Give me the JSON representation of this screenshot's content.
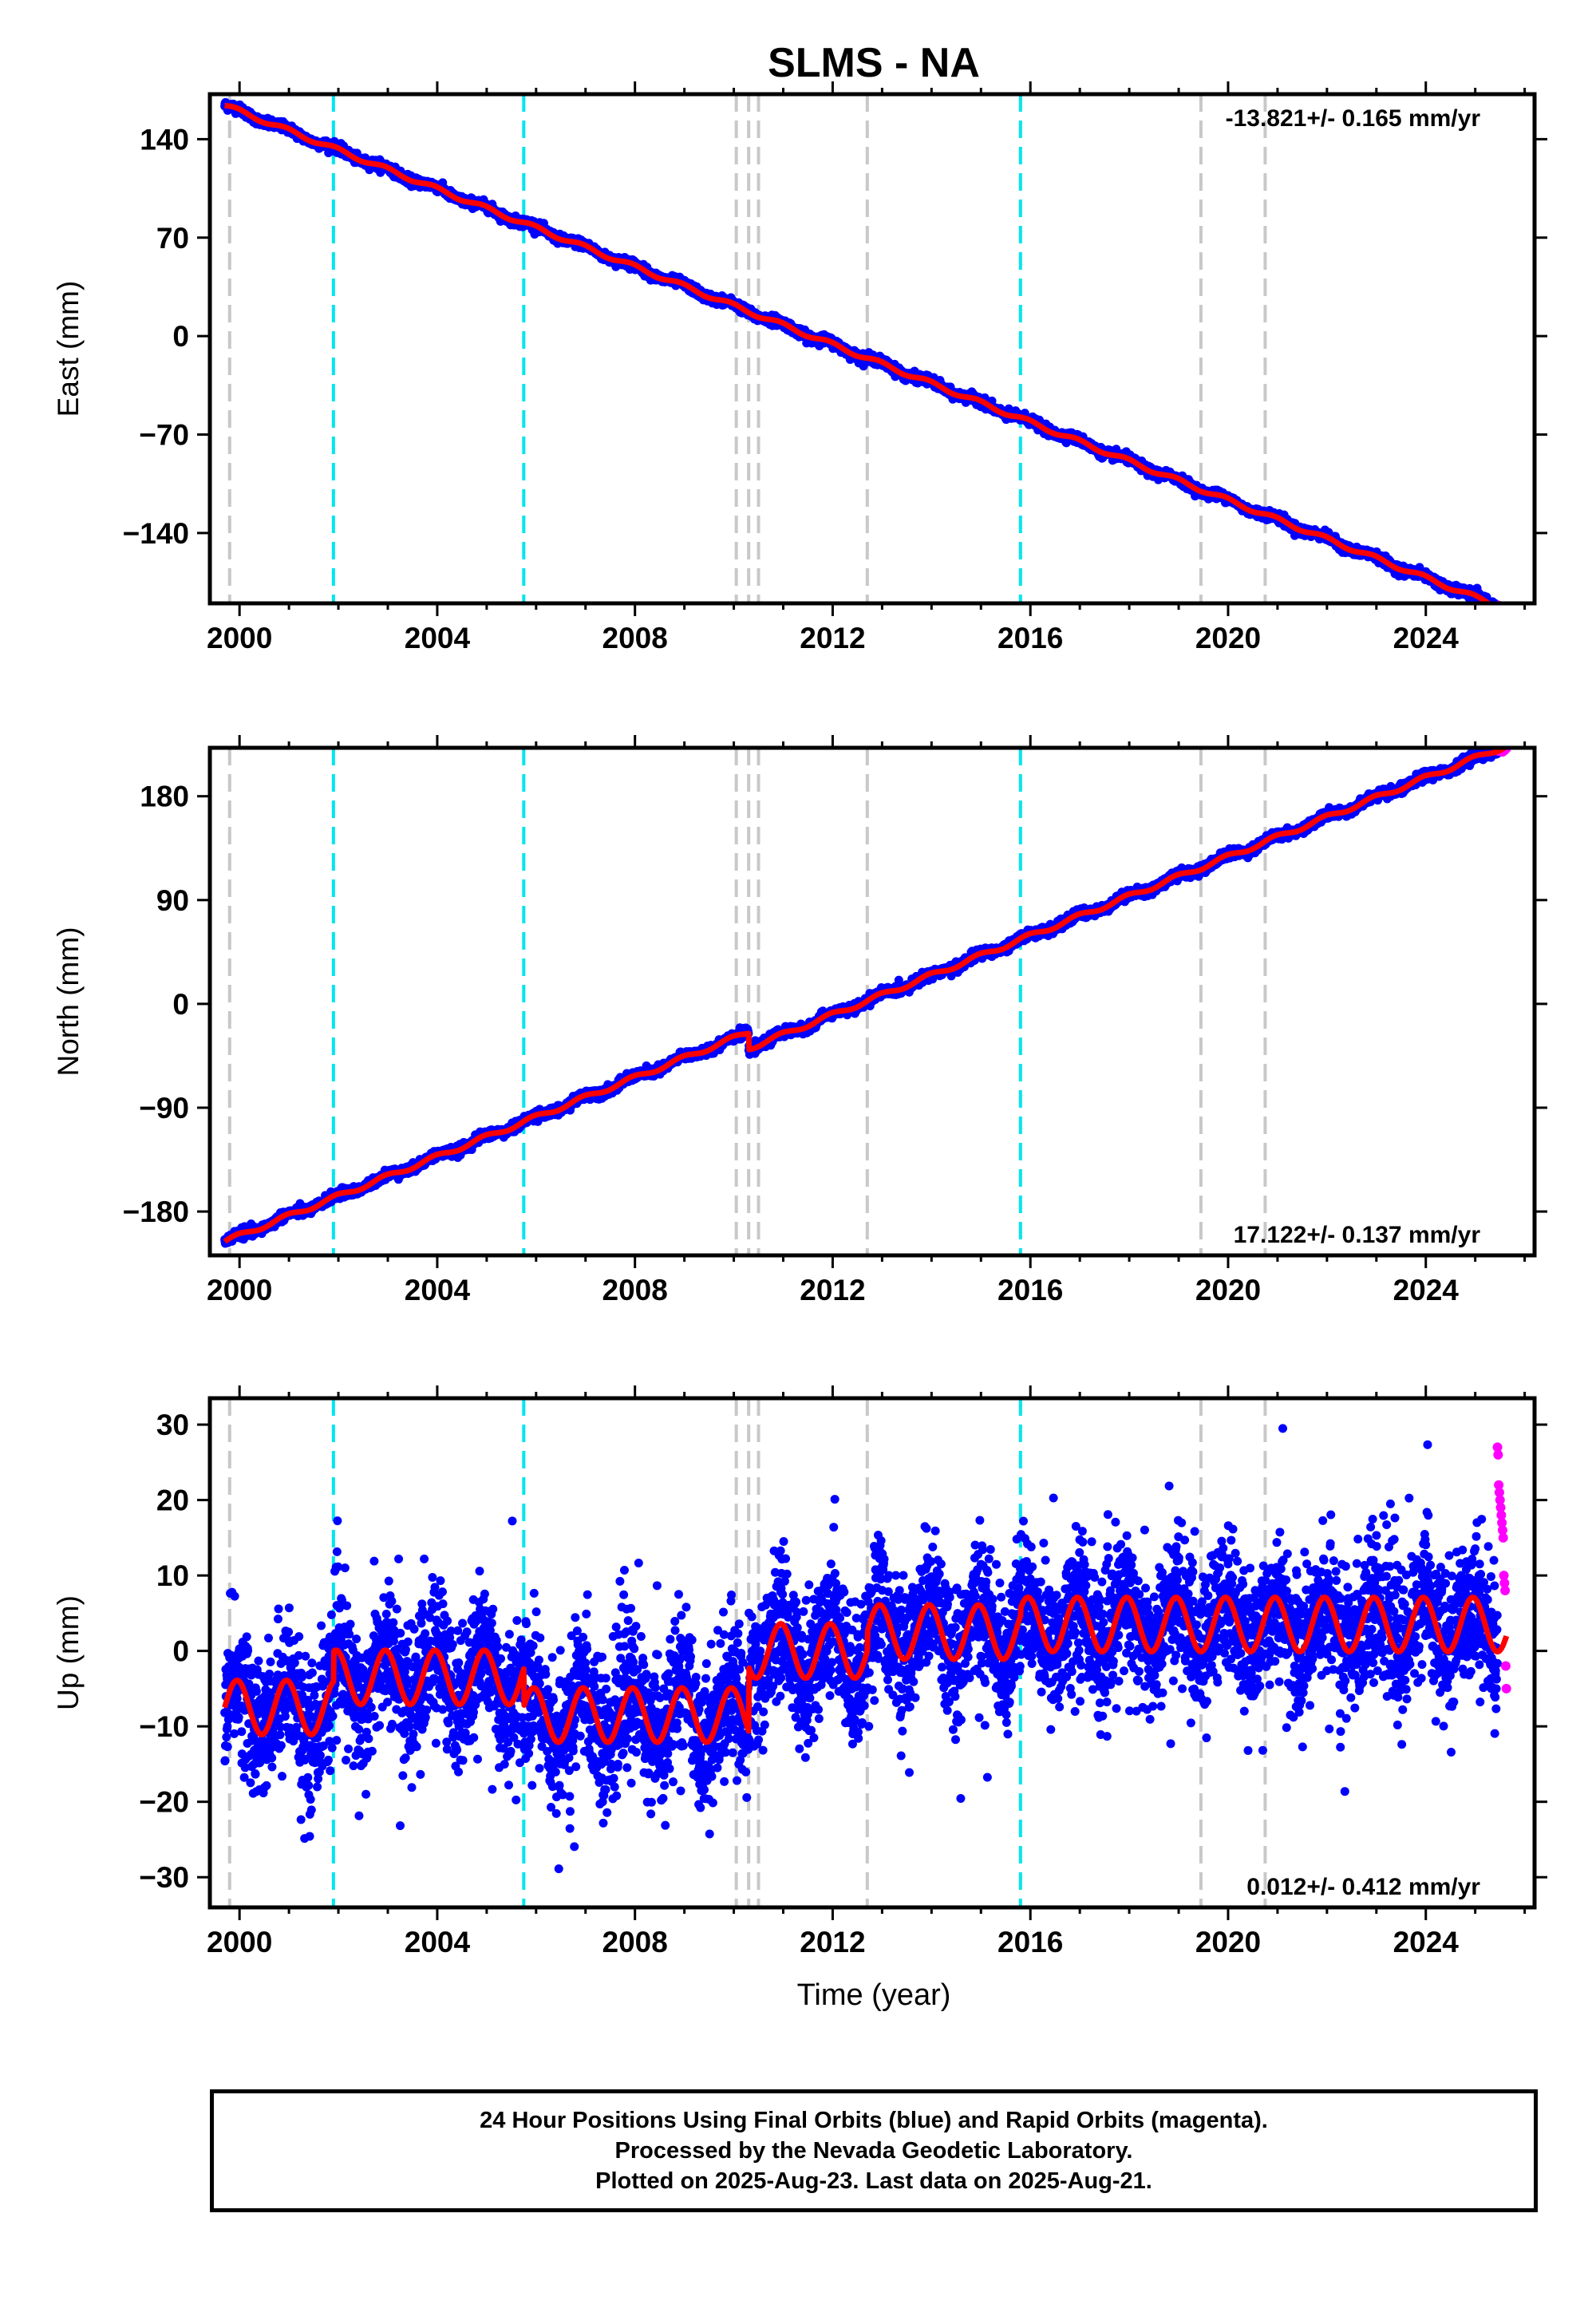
{
  "title": "SLMS - NA",
  "xlabel": "Time (year)",
  "footer": {
    "line1": "24 Hour Positions Using Final Orbits (blue) and Rapid Orbits (magenta).",
    "line2": "Processed by the Nevada Geodetic Laboratory.",
    "line3": "Plotted on 2025-Aug-23. Last data on 2025-Aug-21."
  },
  "colors": {
    "final_orbits": "#0000ff",
    "rapid_orbits": "#ff00ff",
    "model_fit": "#ff0000",
    "antenna_change_lines": "#00e5ee",
    "other_event_lines": "#c8c8c8"
  },
  "chart_data": [
    {
      "type": "scatter",
      "panel": "east",
      "ylabel": "East (mm)",
      "rate_label": "-13.821+/- 0.165 mm/yr",
      "xlim": [
        1999.4,
        2026.2
      ],
      "ylim": [
        -190,
        172
      ],
      "xticks": [
        2000,
        2004,
        2008,
        2012,
        2016,
        2020,
        2024
      ],
      "yticks": [
        140,
        70,
        0,
        -70,
        -140
      ],
      "grid": false,
      "start": 1999.7,
      "end": 2025.63,
      "start_value": 164,
      "rate": -13.821,
      "offsets": [],
      "annual_amplitude": 1.5,
      "scatter_sigma": 1.6
    },
    {
      "type": "scatter",
      "panel": "north",
      "ylabel": "North (mm)",
      "rate_label": "17.122+/- 0.137 mm/yr",
      "xlim": [
        1999.4,
        2026.2
      ],
      "ylim": [
        -218,
        222
      ],
      "xticks": [
        2000,
        2004,
        2008,
        2012,
        2016,
        2020,
        2024
      ],
      "yticks": [
        180,
        90,
        0,
        -90,
        -180
      ],
      "grid": false,
      "start": 1999.7,
      "end": 2025.63,
      "start_value": -206,
      "rate": 17.122,
      "offsets": [
        {
          "year": 2010.3,
          "value": -14
        }
      ],
      "annual_amplitude": 2,
      "scatter_sigma": 2
    },
    {
      "type": "scatter",
      "panel": "up",
      "ylabel": "Up (mm)",
      "rate_label": "0.012+/- 0.412 mm/yr",
      "xlim": [
        1999.4,
        2026.2
      ],
      "ylim": [
        -34,
        33.5
      ],
      "xticks": [
        2000,
        2004,
        2008,
        2012,
        2016,
        2020,
        2024
      ],
      "yticks": [
        30,
        20,
        10,
        0,
        -10,
        -20,
        -30
      ],
      "grid": false,
      "start": 1999.7,
      "end": 2025.63,
      "mean_segments": [
        {
          "from": 1999.7,
          "to": 2001.9,
          "mean": -7.5
        },
        {
          "from": 2001.9,
          "to": 2005.75,
          "mean": -3.5
        },
        {
          "from": 2005.75,
          "to": 2010.3,
          "mean": -8.5
        },
        {
          "from": 2010.3,
          "to": 2012.7,
          "mean": 0
        },
        {
          "from": 2012.7,
          "to": 2015.8,
          "mean": 2.5
        },
        {
          "from": 2015.8,
          "to": 2025.63,
          "mean": 3.5
        }
      ],
      "annual_amplitude": 3.6,
      "scatter_sigma": 4.5
    }
  ],
  "event_lines": {
    "antenna_changes": [
      2001.9,
      2005.75,
      2015.8
    ],
    "other_events": [
      1999.8,
      2010.05,
      2010.3,
      2010.5,
      2012.7,
      2019.45,
      2020.75
    ]
  },
  "rapid_orbits": {
    "from": 2025.45,
    "to": 2025.63,
    "up_values": [
      27,
      26,
      22,
      21,
      20,
      19,
      18,
      17,
      16,
      15,
      10,
      9,
      8,
      -2,
      -5
    ]
  }
}
